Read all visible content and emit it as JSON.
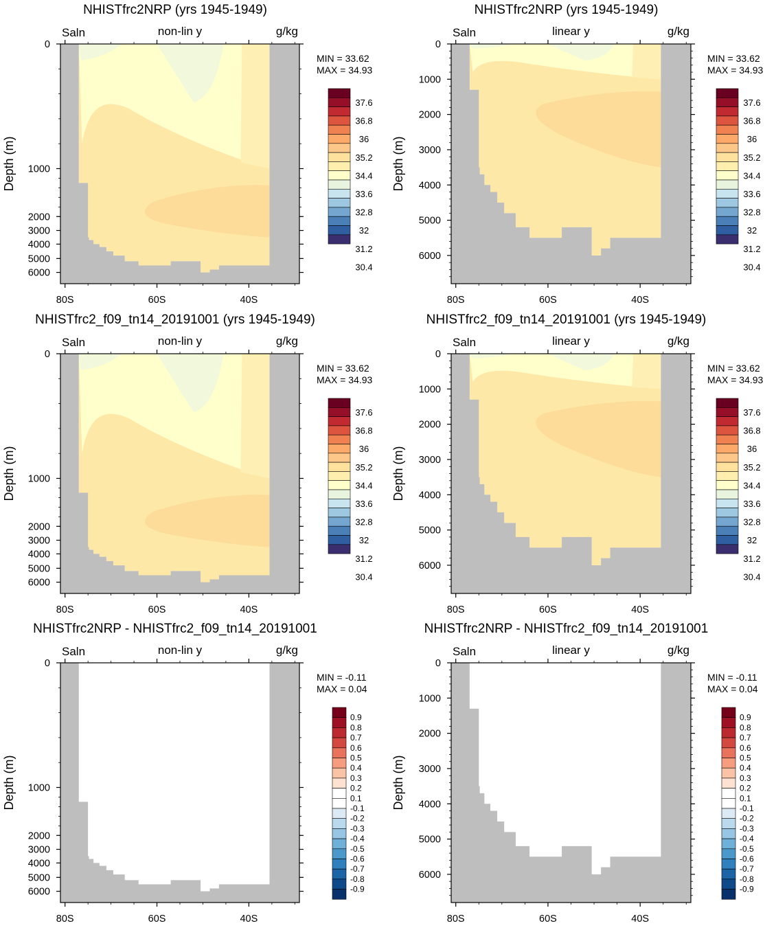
{
  "colors": {
    "land": "#bebebe",
    "sal_levels": [
      "#3b2e6e",
      "#2f5ea1",
      "#4a7fb8",
      "#74a6cf",
      "#9ec8e1",
      "#c7e4ef",
      "#e8f4dd",
      "#ffffcc",
      "#feefae",
      "#fde19c",
      "#fdc789",
      "#fca969",
      "#f08150",
      "#dd543f",
      "#c02a30",
      "#960f28",
      "#690022"
    ],
    "diff_levels": [
      "#08306b",
      "#0e4a8a",
      "#1c64a6",
      "#2f80bc",
      "#4b98ca",
      "#6fb0d8",
      "#96c6e3",
      "#bad9ec",
      "#dbeaf4",
      "#ffffff",
      "#ffffff",
      "#fde1d1",
      "#fbc3a6",
      "#f59d7e",
      "#e8725b",
      "#d4493f",
      "#bc2a2f",
      "#9e1023",
      "#76001a"
    ],
    "field": {
      "deep": "#fde8a8",
      "mid": "#feefb4",
      "upper": "#ffffcc",
      "fresh": "#f1f8dc",
      "core": "#fcdc98"
    }
  },
  "chart_data": [
    {
      "id": "p1",
      "type": "contour",
      "title": "NHISTfrc2NRP (yrs 1945-1949)",
      "corner_left": "Saln",
      "corner_center": "non-lin y",
      "corner_right": "g/kg",
      "ylabel": "Depth (m)",
      "yscale": "nonlin",
      "ylim": [
        0,
        6800
      ],
      "yticks": [
        "0",
        "1000",
        "2000",
        "3000",
        "4000",
        "5000",
        "6000"
      ],
      "xlim": [
        -81,
        -29
      ],
      "xticks": [
        "80S",
        "60S",
        "40S"
      ],
      "min_label": "MIN =  33.62",
      "max_label": "MAX =  34.93",
      "colorbar": "sal",
      "colorbar_labels": [
        "37.6",
        "36.8",
        "36",
        "35.2",
        "34.4",
        "33.6",
        "32.8",
        "32",
        "31.2",
        "30.4"
      ],
      "field": "salinity"
    },
    {
      "id": "p2",
      "type": "contour",
      "title": "NHISTfrc2NRP (yrs 1945-1949)",
      "corner_left": "Saln",
      "corner_center": "linear y",
      "corner_right": "g/kg",
      "ylabel": "Depth (m)",
      "yscale": "linear",
      "ylim": [
        0,
        6800
      ],
      "yticks": [
        "0",
        "1000",
        "2000",
        "3000",
        "4000",
        "5000",
        "6000"
      ],
      "xlim": [
        -81,
        -29
      ],
      "xticks": [
        "80S",
        "60S",
        "40S"
      ],
      "min_label": "MIN =  33.62",
      "max_label": "MAX =  34.93",
      "colorbar": "sal",
      "colorbar_labels": [
        "37.6",
        "36.8",
        "36",
        "35.2",
        "34.4",
        "33.6",
        "32.8",
        "32",
        "31.2",
        "30.4"
      ],
      "field": "salinity"
    },
    {
      "id": "p3",
      "type": "contour",
      "title": "NHISTfrc2_f09_tn14_20191001 (yrs 1945-1949)",
      "corner_left": "Saln",
      "corner_center": "non-lin y",
      "corner_right": "g/kg",
      "ylabel": "Depth (m)",
      "yscale": "nonlin",
      "ylim": [
        0,
        6800
      ],
      "yticks": [
        "0",
        "1000",
        "2000",
        "3000",
        "4000",
        "5000",
        "6000"
      ],
      "xlim": [
        -81,
        -29
      ],
      "xticks": [
        "80S",
        "60S",
        "40S"
      ],
      "min_label": "MIN =  33.62",
      "max_label": "MAX =  34.93",
      "colorbar": "sal",
      "colorbar_labels": [
        "37.6",
        "36.8",
        "36",
        "35.2",
        "34.4",
        "33.6",
        "32.8",
        "32",
        "31.2",
        "30.4"
      ],
      "field": "salinity"
    },
    {
      "id": "p4",
      "type": "contour",
      "title": "NHISTfrc2_f09_tn14_20191001 (yrs 1945-1949)",
      "corner_left": "Saln",
      "corner_center": "linear y",
      "corner_right": "g/kg",
      "ylabel": "Depth (m)",
      "yscale": "linear",
      "ylim": [
        0,
        6800
      ],
      "yticks": [
        "0",
        "1000",
        "2000",
        "3000",
        "4000",
        "5000",
        "6000"
      ],
      "xlim": [
        -81,
        -29
      ],
      "xticks": [
        "80S",
        "60S",
        "40S"
      ],
      "min_label": "MIN =  33.62",
      "max_label": "MAX =  34.93",
      "colorbar": "sal",
      "colorbar_labels": [
        "37.6",
        "36.8",
        "36",
        "35.2",
        "34.4",
        "33.6",
        "32.8",
        "32",
        "31.2",
        "30.4"
      ],
      "field": "salinity"
    },
    {
      "id": "p5",
      "type": "contour",
      "title": "NHISTfrc2NRP - NHISTfrc2_f09_tn14_20191001",
      "corner_left": "Saln",
      "corner_center": "non-lin y",
      "corner_right": "g/kg",
      "ylabel": "Depth (m)",
      "yscale": "nonlin",
      "ylim": [
        0,
        6800
      ],
      "yticks": [
        "0",
        "1000",
        "2000",
        "3000",
        "4000",
        "5000",
        "6000"
      ],
      "xlim": [
        -81,
        -29
      ],
      "xticks": [
        "80S",
        "60S",
        "40S"
      ],
      "min_label": "MIN =  -0.11",
      "max_label": "MAX =   0.04",
      "colorbar": "diff",
      "colorbar_labels": [
        "0.9",
        "0.8",
        "0.7",
        "0.6",
        "0.5",
        "0.4",
        "0.3",
        "0.2",
        "0.1",
        "-0.1",
        "-0.2",
        "-0.3",
        "-0.4",
        "-0.5",
        "-0.6",
        "-0.7",
        "-0.8",
        "-0.9"
      ],
      "field": "difference"
    },
    {
      "id": "p6",
      "type": "contour",
      "title": "NHISTfrc2NRP - NHISTfrc2_f09_tn14_20191001",
      "corner_left": "Saln",
      "corner_center": "linear y",
      "corner_right": "g/kg",
      "ylabel": "Depth (m)",
      "yscale": "linear",
      "ylim": [
        0,
        6800
      ],
      "yticks": [
        "0",
        "1000",
        "2000",
        "3000",
        "4000",
        "5000",
        "6000"
      ],
      "xlim": [
        -81,
        -29
      ],
      "xticks": [
        "80S",
        "60S",
        "40S"
      ],
      "min_label": "MIN =  -0.11",
      "max_label": "MAX =   0.04",
      "colorbar": "diff",
      "colorbar_labels": [
        "0.9",
        "0.8",
        "0.7",
        "0.6",
        "0.5",
        "0.4",
        "0.3",
        "0.2",
        "0.1",
        "-0.1",
        "-0.2",
        "-0.3",
        "-0.4",
        "-0.5",
        "-0.6",
        "-0.7",
        "-0.8",
        "-0.9"
      ],
      "field": "difference"
    }
  ]
}
